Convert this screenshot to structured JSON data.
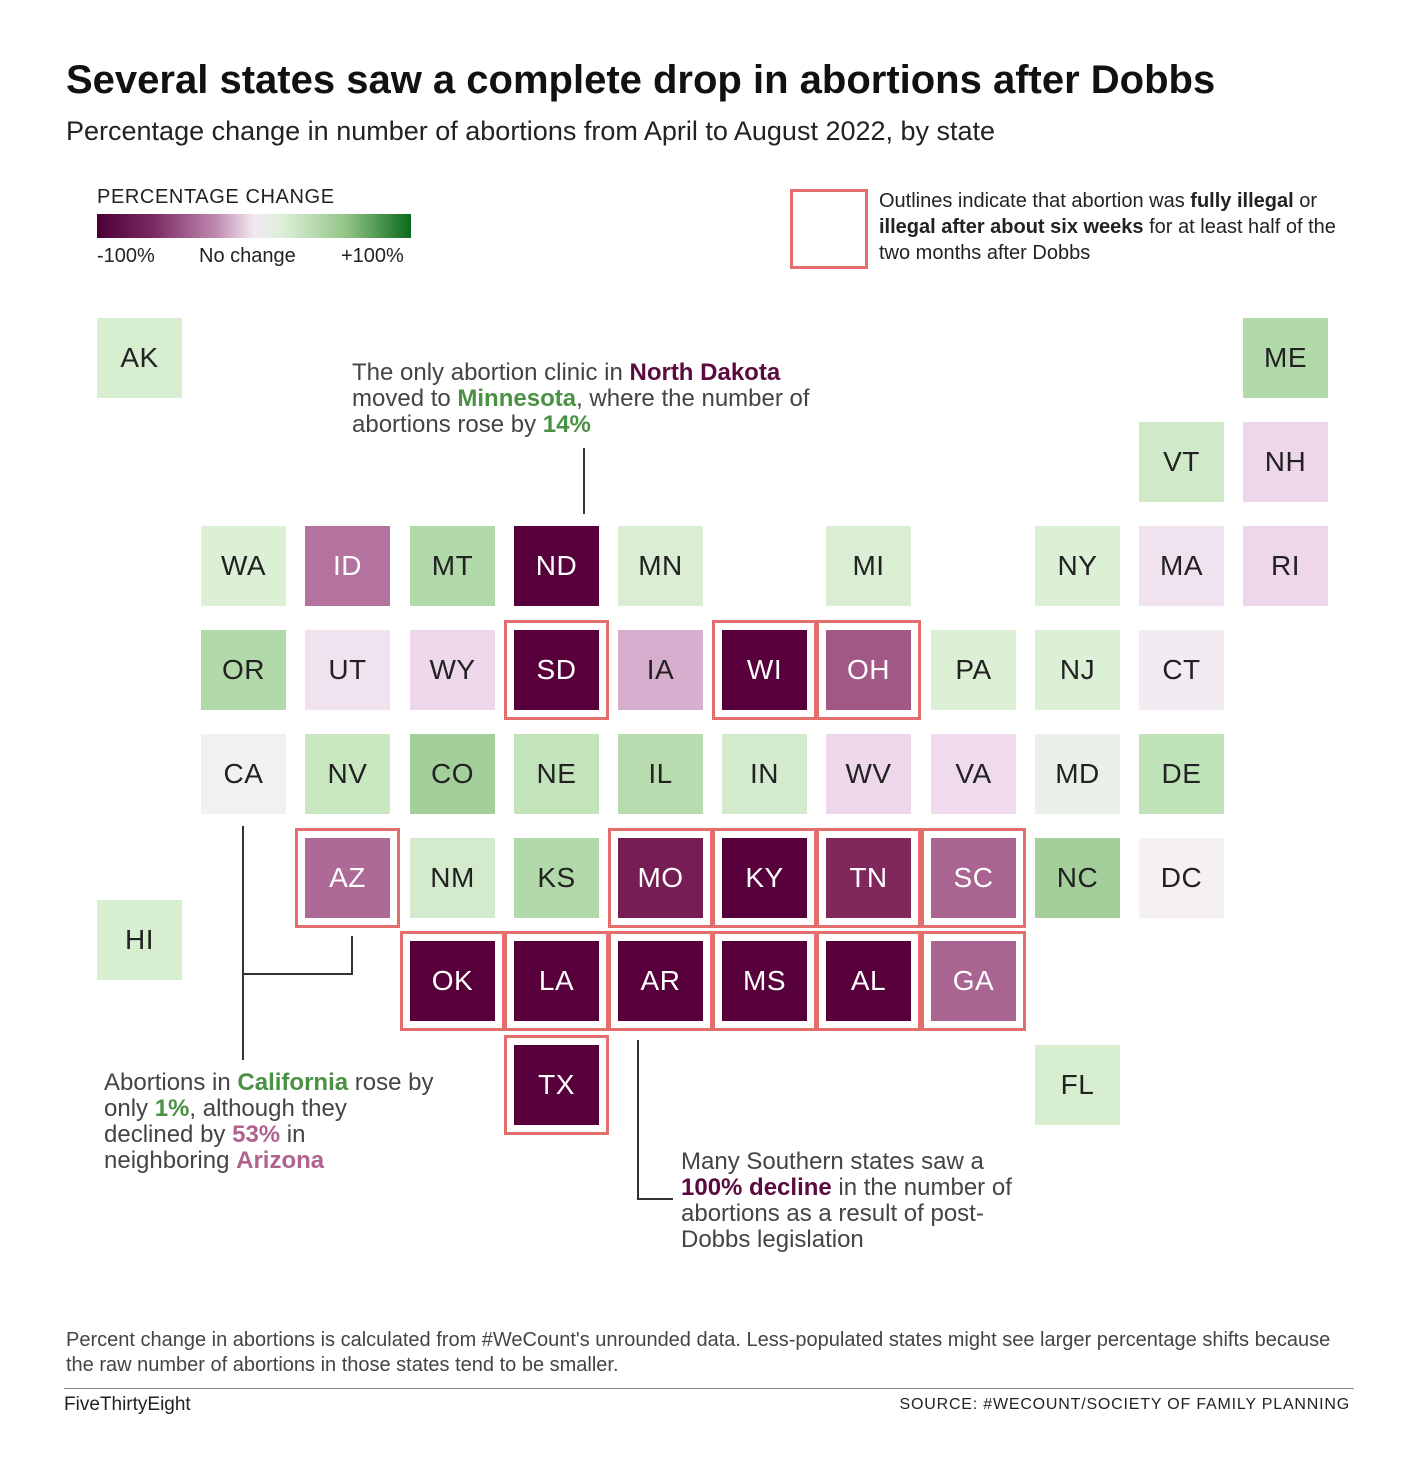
{
  "header": {
    "title": "Several states saw a complete drop in abortions after Dobbs",
    "subtitle": "Percentage change in number of abortions from April to August 2022, by state"
  },
  "legend": {
    "title": "PERCENTAGE CHANGE",
    "min_label": "-100%",
    "mid_label": "No change",
    "max_label": "+100%",
    "outline_note_parts": [
      "Outlines indicate that abortion was ",
      "fully illegal",
      " or ",
      "illegal after about six weeks",
      " for at least half of the two months after Dobbs"
    ]
  },
  "colors": {
    "outline": "#e46e6c",
    "positive_label": "#4a9146",
    "negative_label": "#5a0a3f",
    "arizona_label": "#b0638f"
  },
  "chart_data": {
    "type": "heatmap",
    "title": "Several states saw a complete drop in abortions after Dobbs",
    "subtitle": "Percentage change in number of abortions from April to August 2022, by state",
    "value_unit": "percent change",
    "color_range": [
      -100,
      100
    ],
    "states": [
      {
        "abbr": "AK",
        "row": 0,
        "col": 0,
        "value": 15,
        "outlined": false
      },
      {
        "abbr": "ME",
        "row": 0,
        "col": 11,
        "value": 35,
        "outlined": false
      },
      {
        "abbr": "VT",
        "row": 1,
        "col": 10,
        "value": 20,
        "outlined": false
      },
      {
        "abbr": "NH",
        "row": 1,
        "col": 11,
        "value": -15,
        "outlined": false
      },
      {
        "abbr": "WA",
        "row": 2,
        "col": 1,
        "value": 12,
        "outlined": false
      },
      {
        "abbr": "ID",
        "row": 2,
        "col": 2,
        "value": -50,
        "outlined": false
      },
      {
        "abbr": "MT",
        "row": 2,
        "col": 3,
        "value": 35,
        "outlined": false
      },
      {
        "abbr": "ND",
        "row": 2,
        "col": 4,
        "value": -100,
        "outlined": false
      },
      {
        "abbr": "MN",
        "row": 2,
        "col": 5,
        "value": 14,
        "outlined": false
      },
      {
        "abbr": "MI",
        "row": 2,
        "col": 7,
        "value": 14,
        "outlined": false
      },
      {
        "abbr": "NY",
        "row": 2,
        "col": 9,
        "value": 12,
        "outlined": false
      },
      {
        "abbr": "MA",
        "row": 2,
        "col": 10,
        "value": -8,
        "outlined": false
      },
      {
        "abbr": "RI",
        "row": 2,
        "col": 11,
        "value": -15,
        "outlined": false
      },
      {
        "abbr": "OR",
        "row": 3,
        "col": 1,
        "value": 35,
        "outlined": false
      },
      {
        "abbr": "UT",
        "row": 3,
        "col": 2,
        "value": -8,
        "outlined": false
      },
      {
        "abbr": "WY",
        "row": 3,
        "col": 3,
        "value": -15,
        "outlined": false
      },
      {
        "abbr": "SD",
        "row": 3,
        "col": 4,
        "value": -100,
        "outlined": true
      },
      {
        "abbr": "IA",
        "row": 3,
        "col": 5,
        "value": -30,
        "outlined": false
      },
      {
        "abbr": "WI",
        "row": 3,
        "col": 6,
        "value": -100,
        "outlined": true
      },
      {
        "abbr": "OH",
        "row": 3,
        "col": 7,
        "value": -60,
        "outlined": true
      },
      {
        "abbr": "PA",
        "row": 3,
        "col": 8,
        "value": 12,
        "outlined": false
      },
      {
        "abbr": "NJ",
        "row": 3,
        "col": 9,
        "value": 12,
        "outlined": false
      },
      {
        "abbr": "CT",
        "row": 3,
        "col": 10,
        "value": -3,
        "outlined": false
      },
      {
        "abbr": "CA",
        "row": 4,
        "col": 1,
        "value": 1,
        "outlined": false
      },
      {
        "abbr": "NV",
        "row": 4,
        "col": 2,
        "value": 25,
        "outlined": false
      },
      {
        "abbr": "CO",
        "row": 4,
        "col": 3,
        "value": 40,
        "outlined": false
      },
      {
        "abbr": "NE",
        "row": 4,
        "col": 4,
        "value": 28,
        "outlined": false
      },
      {
        "abbr": "IL",
        "row": 4,
        "col": 5,
        "value": 33,
        "outlined": false
      },
      {
        "abbr": "IN",
        "row": 4,
        "col": 6,
        "value": 18,
        "outlined": false
      },
      {
        "abbr": "WV",
        "row": 4,
        "col": 7,
        "value": -15,
        "outlined": false
      },
      {
        "abbr": "VA",
        "row": 4,
        "col": 8,
        "value": -12,
        "outlined": false
      },
      {
        "abbr": "MD",
        "row": 4,
        "col": 9,
        "value": 5,
        "outlined": false
      },
      {
        "abbr": "DE",
        "row": 4,
        "col": 10,
        "value": 30,
        "outlined": false
      },
      {
        "abbr": "AZ",
        "row": 5,
        "col": 2,
        "value": -53,
        "outlined": true
      },
      {
        "abbr": "NM",
        "row": 5,
        "col": 3,
        "value": 18,
        "outlined": false
      },
      {
        "abbr": "KS",
        "row": 5,
        "col": 4,
        "value": 35,
        "outlined": false
      },
      {
        "abbr": "MO",
        "row": 5,
        "col": 5,
        "value": -85,
        "outlined": true
      },
      {
        "abbr": "KY",
        "row": 5,
        "col": 6,
        "value": -100,
        "outlined": true
      },
      {
        "abbr": "TN",
        "row": 5,
        "col": 7,
        "value": -80,
        "outlined": true
      },
      {
        "abbr": "SC",
        "row": 5,
        "col": 8,
        "value": -55,
        "outlined": true
      },
      {
        "abbr": "NC",
        "row": 5,
        "col": 9,
        "value": 40,
        "outlined": false
      },
      {
        "abbr": "DC",
        "row": 5,
        "col": 10,
        "value": 0,
        "outlined": false
      },
      {
        "abbr": "HI",
        "row": 5.6,
        "col": 0,
        "value": 15,
        "outlined": false
      },
      {
        "abbr": "OK",
        "row": 6,
        "col": 3,
        "value": -100,
        "outlined": true
      },
      {
        "abbr": "LA",
        "row": 6,
        "col": 4,
        "value": -100,
        "outlined": true
      },
      {
        "abbr": "AR",
        "row": 6,
        "col": 5,
        "value": -100,
        "outlined": true
      },
      {
        "abbr": "MS",
        "row": 6,
        "col": 6,
        "value": -100,
        "outlined": true
      },
      {
        "abbr": "AL",
        "row": 6,
        "col": 7,
        "value": -100,
        "outlined": true
      },
      {
        "abbr": "GA",
        "row": 6,
        "col": 8,
        "value": -55,
        "outlined": true
      },
      {
        "abbr": "TX",
        "row": 7,
        "col": 4,
        "value": -100,
        "outlined": true
      },
      {
        "abbr": "FL",
        "row": 7,
        "col": 9,
        "value": 15,
        "outlined": false
      }
    ]
  },
  "annotations": {
    "nd_mn": {
      "text_1": "The only abortion clinic in ",
      "nd": "North Dakota",
      "text_2": " moved to ",
      "mn": "Minnesota",
      "text_3": ", where the number of abortions rose by ",
      "pct": "14%"
    },
    "ca_az": {
      "text_1": "Abortions in ",
      "ca": "California",
      "text_2": " rose by only ",
      "pct_ca": "1%",
      "text_3": ", although they declined by ",
      "pct_az": "53%",
      "text_4": " in neighboring ",
      "az": "Arizona"
    },
    "south": {
      "text_1": "Many Southern states saw a ",
      "bold": "100% decline",
      "text_2": " in the number of abortions as a result of post-Dobbs legislation"
    }
  },
  "footer": {
    "note": "Percent change in abortions is calculated from #WeCount's unrounded data. Less-populated states might see larger percentage shifts because the raw number of abortions in those states tend to be smaller.",
    "brand": "FiveThirtyEight",
    "source": "SOURCE: #WECOUNT/SOCIETY OF FAMILY PLANNING"
  }
}
